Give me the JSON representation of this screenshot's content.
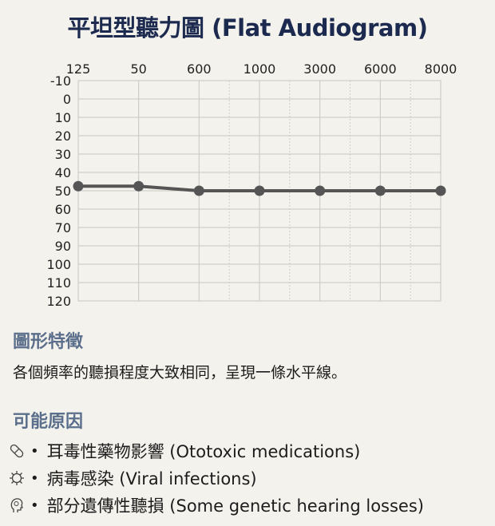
{
  "title": "平坦型聽力圖 (Flat Audiogram)",
  "chart_data": {
    "type": "line",
    "title": "平坦型聽力圖 (Flat Audiogram)",
    "x_tick_labels": [
      "125",
      "50",
      "600",
      "1000",
      "3000",
      "6000",
      "8000"
    ],
    "y_tick_labels": [
      "-10",
      "0",
      "10",
      "20",
      "30",
      "40",
      "50",
      "60",
      "70",
      "90",
      "100",
      "110",
      "120"
    ],
    "y_inverted": true,
    "grid": true,
    "series": [
      {
        "values": [
          47.5,
          47.5,
          50,
          50,
          50,
          50,
          50
        ],
        "color": "#555555"
      }
    ]
  },
  "features": {
    "heading": "圖形特徵",
    "text": "各個頻率的聽損程度大致相同，呈現一條水平線。"
  },
  "causes": {
    "heading": "可能原因",
    "items": [
      {
        "icon": "pill-icon",
        "label": "耳毒性藥物影響 (Ototoxic medications)"
      },
      {
        "icon": "virus-icon",
        "label": "病毒感染 (Viral infections)"
      },
      {
        "icon": "head-dna-icon",
        "label": "部分遺傳性聽損 (Some genetic hearing losses)"
      }
    ]
  }
}
